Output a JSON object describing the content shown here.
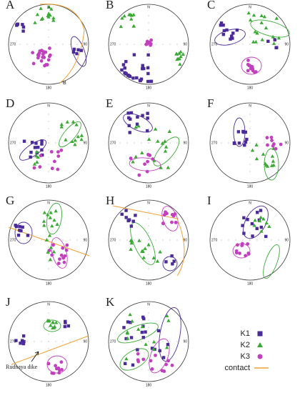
{
  "panels": [
    {
      "label": "A",
      "extra": "B"
    },
    {
      "label": "B"
    },
    {
      "label": "C"
    },
    {
      "label": "D"
    },
    {
      "label": "E"
    },
    {
      "label": "F"
    },
    {
      "label": "G"
    },
    {
      "label": "H"
    },
    {
      "label": "I"
    },
    {
      "label": "J",
      "annotation": "Rudnaya dike"
    },
    {
      "label": "K"
    }
  ],
  "directions": {
    "north": "N",
    "west": "270",
    "east": "90",
    "south": "180"
  },
  "legend": [
    {
      "label": "K1",
      "color": "#4b2a9a",
      "shape": "square"
    },
    {
      "label": "K2",
      "color": "#3aaa35",
      "shape": "triangle"
    },
    {
      "label": "K3",
      "color": "#c23fbf",
      "shape": "circle"
    },
    {
      "label": "contact",
      "color": "#f0a030",
      "shape": "line"
    }
  ]
}
